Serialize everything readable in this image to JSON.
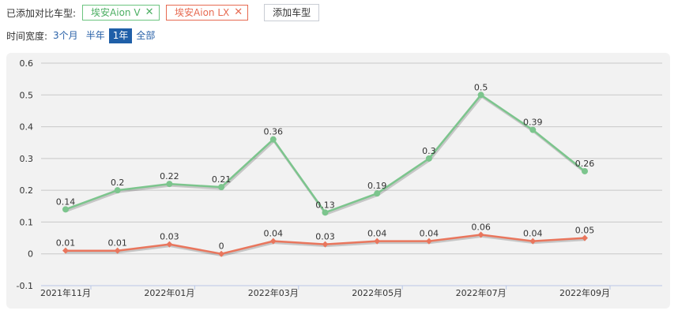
{
  "filters": {
    "added_label": "已添加对比车型:",
    "tags": [
      {
        "label": "埃安Aion V",
        "color": "#4caf63"
      },
      {
        "label": "埃安Aion LX",
        "color": "#e76a51"
      }
    ],
    "close_glyph": "✕",
    "add_button": "添加车型"
  },
  "time_range": {
    "label": "时间宽度:",
    "options": [
      "3个月",
      "半年",
      "1年",
      "全部"
    ],
    "active": "1年"
  },
  "chart_data": {
    "type": "line",
    "x": [
      "2021-11",
      "2021-12",
      "2022-01",
      "2022-02",
      "2022-03",
      "2022-04",
      "2022-05",
      "2022-06",
      "2022-07",
      "2022-08",
      "2022-09"
    ],
    "tick_labels": [
      "2021年11月",
      "2022年01月",
      "2022年03月",
      "2022年05月",
      "2022年07月",
      "2022年09月"
    ],
    "tick_index": [
      0,
      2,
      4,
      6,
      8,
      10
    ],
    "y_ticks": [
      "0.6",
      "0.5",
      "0.4",
      "0.3",
      "0.2",
      "0.1",
      "0",
      "-0.1"
    ],
    "ylim": [
      -0.1,
      0.6
    ],
    "grid": true,
    "series": [
      {
        "name": "埃安Aion V",
        "color": "#7cc58d",
        "values": [
          0.14,
          0.2,
          0.22,
          0.21,
          0.36,
          0.13,
          0.19,
          0.3,
          0.5,
          0.39,
          0.26
        ],
        "labels": [
          "0.14",
          "0.2",
          "0.22",
          "0.21",
          "0.36",
          "0.13",
          "0.19",
          "0.3",
          "0.5",
          "0.39",
          "0.26"
        ]
      },
      {
        "name": "埃安Aion LX",
        "color": "#e9765d",
        "values": [
          0.01,
          0.01,
          0.03,
          0,
          0.04,
          0.03,
          0.04,
          0.04,
          0.06,
          0.04,
          0.05
        ],
        "labels": [
          "0.01",
          "0.01",
          "0.03",
          "0",
          "0.04",
          "0.03",
          "0.04",
          "0.04",
          "0.06",
          "0.04",
          "0.05"
        ]
      }
    ]
  }
}
